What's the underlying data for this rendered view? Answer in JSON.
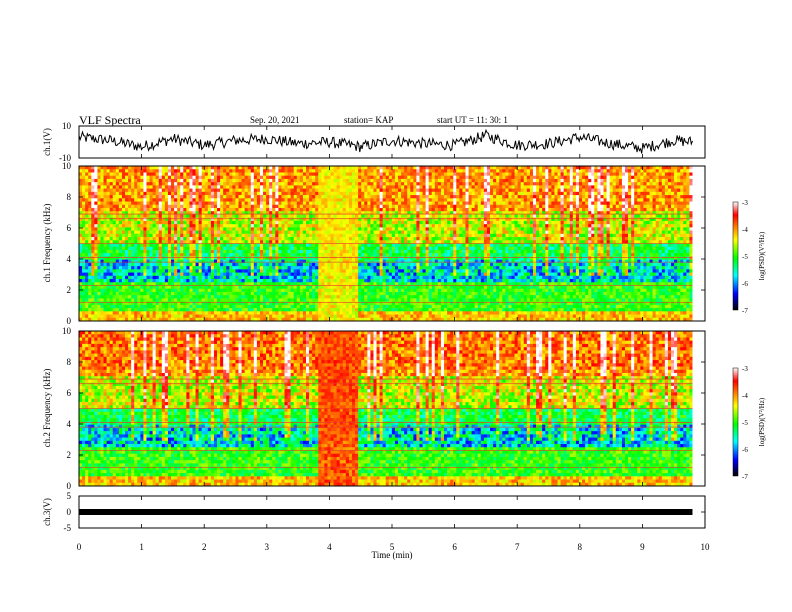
{
  "header": {
    "title": "VLF Spectra",
    "date": "Sep. 20, 2021",
    "station": "station= KAP",
    "start_ut": "start  UT =   11: 30: 1"
  },
  "colors": {
    "colormap": [
      "#ffffff",
      "#ff0000",
      "#ffff00",
      "#00ff00",
      "#00ffff",
      "#0000ff",
      "#000000"
    ],
    "trace": "#000000",
    "channel3_band": "#000000"
  },
  "chart_data": [
    {
      "type": "line",
      "name": "ch1-waveform",
      "ylabel": "ch.1(V)",
      "ylim": [
        -10,
        10
      ],
      "yticks": [
        "10",
        "-10"
      ],
      "x": [
        0.0,
        0.5,
        1.0,
        1.5,
        2.0,
        2.5,
        3.0,
        3.5,
        4.0,
        4.5,
        5.0,
        5.5,
        6.0,
        6.5,
        7.0,
        7.5,
        8.0,
        8.5,
        9.0,
        9.5,
        9.8
      ],
      "y": [
        3,
        1,
        -3,
        2,
        -2,
        1,
        2,
        -1,
        0,
        -3,
        1,
        -1,
        -2,
        4,
        -2,
        -1,
        3,
        -1,
        -4,
        1,
        0
      ]
    },
    {
      "type": "heatmap",
      "name": "ch1-spectrogram",
      "ylabel": "ch.1 Frequency (kHz)",
      "ylim": [
        0,
        10
      ],
      "yticks": [
        "0",
        "2",
        "4",
        "6",
        "8",
        "10"
      ],
      "colorbar_label": "log(PSD)(V²/Hz)",
      "colorbar_range": [
        -7,
        -3
      ],
      "colorbar_ticks": [
        "-3",
        "-4",
        "-5",
        "-6",
        "-7"
      ]
    },
    {
      "type": "heatmap",
      "name": "ch2-spectrogram",
      "ylabel": "ch.2 Frequency (kHz)",
      "ylim": [
        0,
        10
      ],
      "yticks": [
        "0",
        "2",
        "4",
        "6",
        "8",
        "10"
      ],
      "colorbar_label": "log(PSD)(V²/Hz)",
      "colorbar_range": [
        -7,
        -3
      ],
      "colorbar_ticks": [
        "-3",
        "-4",
        "-5",
        "-6",
        "-7"
      ]
    },
    {
      "type": "line",
      "name": "ch3-waveform",
      "ylabel": "ch.3(V)",
      "ylim": [
        -5,
        5
      ],
      "yticks": [
        "5",
        "0",
        "-5"
      ],
      "x": [
        0,
        9.8
      ],
      "y": [
        0,
        0
      ]
    }
  ],
  "xaxis": {
    "label": "Time (min)",
    "range": [
      0,
      10
    ],
    "ticks": [
      "0",
      "1",
      "2",
      "3",
      "4",
      "5",
      "6",
      "7",
      "8",
      "9",
      "10"
    ]
  }
}
